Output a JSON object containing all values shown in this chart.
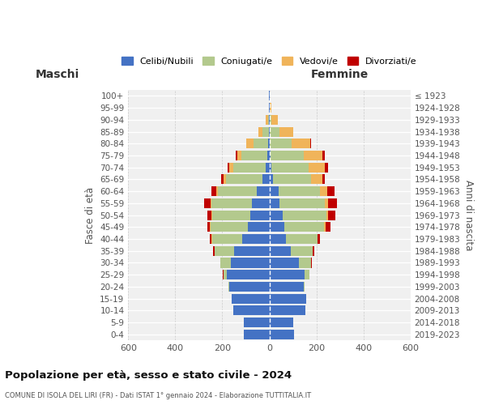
{
  "age_groups": [
    "0-4",
    "5-9",
    "10-14",
    "15-19",
    "20-24",
    "25-29",
    "30-34",
    "35-39",
    "40-44",
    "45-49",
    "50-54",
    "55-59",
    "60-64",
    "65-69",
    "70-74",
    "75-79",
    "80-84",
    "85-89",
    "90-94",
    "95-99",
    "100+"
  ],
  "birth_years": [
    "2019-2023",
    "2014-2018",
    "2009-2013",
    "2004-2008",
    "1999-2003",
    "1994-1998",
    "1989-1993",
    "1984-1988",
    "1979-1983",
    "1974-1978",
    "1969-1973",
    "1964-1968",
    "1959-1963",
    "1954-1958",
    "1949-1953",
    "1944-1948",
    "1939-1943",
    "1934-1938",
    "1929-1933",
    "1924-1928",
    "≤ 1923"
  ],
  "colors": {
    "celibi": "#4472c4",
    "coniugati": "#b3c98d",
    "vedovi": "#f0b45a",
    "divorziati": "#c00000"
  },
  "maschi": {
    "celibi": [
      108,
      110,
      155,
      160,
      170,
      180,
      165,
      150,
      115,
      92,
      82,
      75,
      52,
      28,
      16,
      8,
      4,
      3,
      2,
      1,
      1
    ],
    "coniugati": [
      0,
      0,
      0,
      0,
      5,
      15,
      42,
      82,
      128,
      158,
      162,
      172,
      168,
      158,
      138,
      112,
      65,
      25,
      5,
      1,
      0
    ],
    "vedovi": [
      0,
      0,
      0,
      0,
      0,
      0,
      0,
      1,
      2,
      2,
      3,
      3,
      5,
      10,
      15,
      15,
      28,
      20,
      8,
      1,
      0
    ],
    "divorziati": [
      0,
      0,
      0,
      0,
      0,
      2,
      3,
      5,
      8,
      12,
      18,
      28,
      20,
      10,
      10,
      8,
      3,
      0,
      0,
      0,
      0
    ]
  },
  "femmine": {
    "celibi": [
      105,
      100,
      152,
      158,
      145,
      148,
      125,
      92,
      72,
      62,
      55,
      44,
      38,
      15,
      10,
      5,
      3,
      2,
      2,
      1,
      1
    ],
    "coniugati": [
      0,
      0,
      0,
      0,
      5,
      22,
      52,
      92,
      132,
      172,
      188,
      192,
      178,
      162,
      158,
      142,
      90,
      40,
      8,
      1,
      0
    ],
    "vedovi": [
      0,
      0,
      0,
      0,
      0,
      0,
      0,
      1,
      2,
      5,
      8,
      15,
      30,
      50,
      68,
      80,
      80,
      58,
      25,
      5,
      2
    ],
    "divorziati": [
      0,
      0,
      0,
      0,
      0,
      2,
      2,
      5,
      10,
      20,
      30,
      35,
      30,
      10,
      15,
      10,
      5,
      0,
      0,
      0,
      0
    ]
  },
  "title": "Popolazione per età, sesso e stato civile - 2024",
  "subtitle": "COMUNE DI ISOLA DEL LIRI (FR) - Dati ISTAT 1° gennaio 2024 - Elaborazione TUTTITALIA.IT",
  "xlabel_left": "Maschi",
  "xlabel_right": "Femmine",
  "ylabel_left": "Fasce di età",
  "ylabel_right": "Anni di nascita",
  "xlim": 600,
  "legend_labels": [
    "Celibi/Nubili",
    "Coniugati/e",
    "Vedovi/e",
    "Divorziati/e"
  ],
  "bg_color": "#f0f0f0"
}
